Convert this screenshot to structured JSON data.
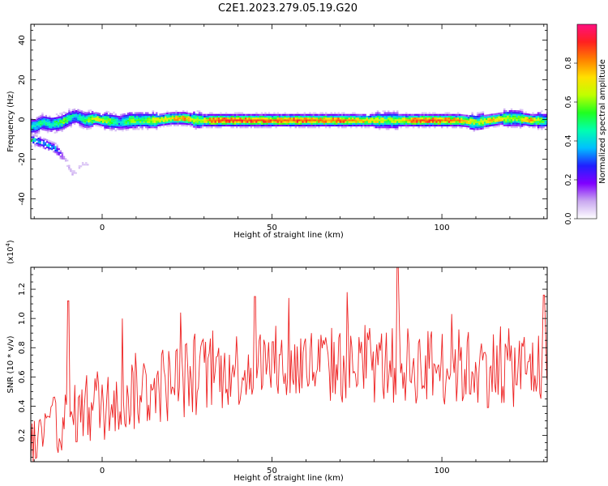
{
  "title": "C2E1.2023.279.05.19.G20",
  "colors": {
    "snr_line": "#ee2222",
    "axis": "#000000"
  },
  "chart_data": [
    {
      "type": "heatmap",
      "name": "spectrogram",
      "xlabel": "Height of straight line (km)",
      "ylabel": "Frequency (Hz)",
      "xlim": [
        -21,
        131
      ],
      "ylim": [
        -50,
        48
      ],
      "x_ticks": [
        0,
        50,
        100
      ],
      "y_ticks": [
        -40,
        -20,
        0,
        20,
        40
      ],
      "colorbar": {
        "label": "Normalized spectral amplitude",
        "range": [
          0,
          1
        ],
        "ticks": [
          "0.0",
          "0.2",
          "0.4",
          "0.6",
          "0.8"
        ],
        "colormap": [
          "#ffffff",
          "#c9a8f0",
          "#8000ff",
          "#2020ff",
          "#00c0ff",
          "#00ffb0",
          "#20ff20",
          "#c0ff00",
          "#ffe000",
          "#ff8000",
          "#ff2020",
          "#ff1080"
        ]
      },
      "ridge": {
        "description_values": "peak amplitude near 0 Hz across heights",
        "points": [
          {
            "x": -20,
            "y": -3,
            "amp": 0.45
          },
          {
            "x": -18,
            "y": -1,
            "amp": 0.5
          },
          {
            "x": -15,
            "y": -2,
            "amp": 0.45
          },
          {
            "x": -12,
            "y": -1,
            "amp": 0.6
          },
          {
            "x": -10,
            "y": 1,
            "amp": 0.5
          },
          {
            "x": -8,
            "y": 2,
            "amp": 0.4
          },
          {
            "x": -5,
            "y": 0,
            "amp": 0.55
          },
          {
            "x": -2,
            "y": 1,
            "amp": 0.75
          },
          {
            "x": 0,
            "y": 0,
            "amp": 0.7
          },
          {
            "x": 5,
            "y": -1,
            "amp": 0.4
          },
          {
            "x": 8,
            "y": 0,
            "amp": 0.65
          },
          {
            "x": 12,
            "y": 0,
            "amp": 0.55
          },
          {
            "x": 16,
            "y": 0,
            "amp": 0.7
          },
          {
            "x": 20,
            "y": 1,
            "amp": 0.75
          },
          {
            "x": 24,
            "y": 1,
            "amp": 0.85
          },
          {
            "x": 28,
            "y": 0,
            "amp": 0.6
          },
          {
            "x": 32,
            "y": 0,
            "amp": 0.9
          },
          {
            "x": 38,
            "y": 0,
            "amp": 0.92
          },
          {
            "x": 45,
            "y": 0,
            "amp": 0.9
          },
          {
            "x": 52,
            "y": 0,
            "amp": 0.88
          },
          {
            "x": 58,
            "y": 0,
            "amp": 0.9
          },
          {
            "x": 64,
            "y": 0,
            "amp": 0.85
          },
          {
            "x": 70,
            "y": 0,
            "amp": 0.88
          },
          {
            "x": 76,
            "y": 0,
            "amp": 0.8
          },
          {
            "x": 80,
            "y": 0,
            "amp": 0.7
          },
          {
            "x": 84,
            "y": 0,
            "amp": 0.6
          },
          {
            "x": 88,
            "y": 0,
            "amp": 0.75
          },
          {
            "x": 92,
            "y": 0,
            "amp": 0.9
          },
          {
            "x": 96,
            "y": 0,
            "amp": 0.9
          },
          {
            "x": 100,
            "y": 0,
            "amp": 0.88
          },
          {
            "x": 105,
            "y": 0,
            "amp": 0.85
          },
          {
            "x": 110,
            "y": -1,
            "amp": 0.6
          },
          {
            "x": 114,
            "y": 0,
            "amp": 0.8
          },
          {
            "x": 118,
            "y": 1,
            "amp": 0.7
          },
          {
            "x": 122,
            "y": 1,
            "amp": 0.6
          },
          {
            "x": 126,
            "y": 0,
            "amp": 0.85
          },
          {
            "x": 130,
            "y": 0,
            "amp": 0.5
          }
        ],
        "tail": [
          {
            "x": -20,
            "y": -10,
            "amp": 0.45
          },
          {
            "x": -17,
            "y": -12,
            "amp": 0.4
          },
          {
            "x": -14,
            "y": -14,
            "amp": 0.35
          },
          {
            "x": -11,
            "y": -20,
            "amp": 0.1
          },
          {
            "x": -9,
            "y": -27,
            "amp": 0.08
          },
          {
            "x": -6,
            "y": -22,
            "amp": 0.06
          }
        ]
      }
    },
    {
      "type": "line",
      "name": "snr",
      "xlabel": "Height of straight line (km)",
      "ylabel": "SNR (10 * v/v)",
      "y_scale_label": "(x10",
      "y_scale_exp": "4",
      "y_scale_close": ")",
      "xlim": [
        -21,
        131
      ],
      "ylim": [
        0.02,
        1.35
      ],
      "x_ticks": [
        0,
        50,
        100
      ],
      "y_ticks": [
        0.2,
        0.4,
        0.6,
        0.8,
        1.0,
        1.2
      ],
      "y_tick_labels": [
        "0.2",
        "0.4",
        "0.6",
        "0.8",
        "1.0",
        "1.2"
      ],
      "trend": [
        {
          "x": -21,
          "y": 0.12
        },
        {
          "x": -15,
          "y": 0.25
        },
        {
          "x": -10,
          "y": 0.32
        },
        {
          "x": -5,
          "y": 0.38
        },
        {
          "x": 0,
          "y": 0.42
        },
        {
          "x": 10,
          "y": 0.5
        },
        {
          "x": 20,
          "y": 0.56
        },
        {
          "x": 30,
          "y": 0.62
        },
        {
          "x": 40,
          "y": 0.66
        },
        {
          "x": 50,
          "y": 0.68
        },
        {
          "x": 60,
          "y": 0.68
        },
        {
          "x": 70,
          "y": 0.68
        },
        {
          "x": 80,
          "y": 0.68
        },
        {
          "x": 90,
          "y": 0.68
        },
        {
          "x": 100,
          "y": 0.67
        },
        {
          "x": 110,
          "y": 0.66
        },
        {
          "x": 120,
          "y": 0.66
        },
        {
          "x": 131,
          "y": 0.66
        }
      ],
      "noise_amplitude": 0.16,
      "peaks": [
        {
          "x": -10,
          "y": 1.12
        },
        {
          "x": 6,
          "y": 1.0
        },
        {
          "x": 23,
          "y": 1.04
        },
        {
          "x": 45,
          "y": 1.15
        },
        {
          "x": 55,
          "y": 1.14
        },
        {
          "x": 72,
          "y": 1.18
        },
        {
          "x": 87,
          "y": 1.36
        },
        {
          "x": 103,
          "y": 1.03
        },
        {
          "x": 130,
          "y": 1.16
        }
      ]
    }
  ]
}
